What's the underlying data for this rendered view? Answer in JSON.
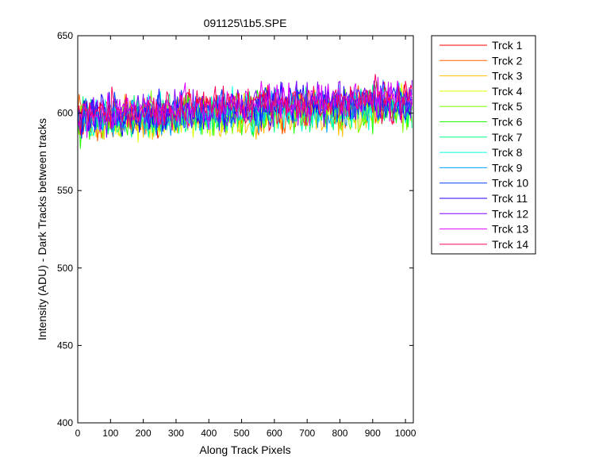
{
  "chart_data": {
    "type": "line",
    "title": "091125\\1b5.SPE",
    "xlabel": "Along Track Pixels",
    "ylabel": "Intensity (ADU) - Dark Tracks between tracks",
    "xlim": [
      0,
      1024
    ],
    "ylim": [
      400,
      650
    ],
    "xticks": [
      0,
      100,
      200,
      300,
      400,
      500,
      600,
      700,
      800,
      900,
      1000
    ],
    "yticks": [
      400,
      450,
      500,
      550,
      600,
      650
    ],
    "grid": false,
    "legend_position": "outside-right-top",
    "x_sampling": {
      "start": 0,
      "end": 1023,
      "step": 4
    },
    "noise_amplitude": 9,
    "series": [
      {
        "name": "Trck 1",
        "color": "#ff0000",
        "baseline": [
          [
            0,
            596
          ],
          [
            300,
            599
          ],
          [
            600,
            603
          ],
          [
            1023,
            607
          ]
        ]
      },
      {
        "name": "Trck 2",
        "color": "#ff6000",
        "baseline": [
          [
            0,
            595
          ],
          [
            300,
            598
          ],
          [
            600,
            601
          ],
          [
            1023,
            605
          ]
        ]
      },
      {
        "name": "Trck 3",
        "color": "#ffbf00",
        "baseline": [
          [
            0,
            594
          ],
          [
            300,
            597
          ],
          [
            600,
            600
          ],
          [
            1023,
            603
          ]
        ]
      },
      {
        "name": "Trck 4",
        "color": "#dfff00",
        "baseline": [
          [
            0,
            594
          ],
          [
            300,
            597
          ],
          [
            600,
            600
          ],
          [
            1023,
            603
          ]
        ]
      },
      {
        "name": "Trck 5",
        "color": "#80ff00",
        "baseline": [
          [
            0,
            595
          ],
          [
            300,
            598
          ],
          [
            600,
            601
          ],
          [
            1023,
            604
          ]
        ]
      },
      {
        "name": "Trck 6",
        "color": "#20ff00",
        "baseline": [
          [
            0,
            595
          ],
          [
            300,
            598
          ],
          [
            600,
            601
          ],
          [
            1023,
            604
          ]
        ]
      },
      {
        "name": "Trck 7",
        "color": "#00ff80",
        "baseline": [
          [
            0,
            596
          ],
          [
            300,
            599
          ],
          [
            600,
            602
          ],
          [
            1023,
            605
          ]
        ]
      },
      {
        "name": "Trck 8",
        "color": "#00ffdf",
        "baseline": [
          [
            0,
            596
          ],
          [
            300,
            599
          ],
          [
            600,
            602
          ],
          [
            1023,
            605
          ]
        ]
      },
      {
        "name": "Trck 9",
        "color": "#009fff",
        "baseline": [
          [
            0,
            597
          ],
          [
            300,
            600
          ],
          [
            600,
            603
          ],
          [
            1023,
            606
          ]
        ]
      },
      {
        "name": "Trck 10",
        "color": "#0040ff",
        "baseline": [
          [
            0,
            598
          ],
          [
            300,
            601
          ],
          [
            600,
            604
          ],
          [
            1023,
            607
          ]
        ]
      },
      {
        "name": "Trck 11",
        "color": "#2000ff",
        "baseline": [
          [
            0,
            598
          ],
          [
            300,
            602
          ],
          [
            600,
            605
          ],
          [
            1023,
            608
          ]
        ]
      },
      {
        "name": "Trck 12",
        "color": "#8000ff",
        "baseline": [
          [
            0,
            599
          ],
          [
            300,
            602
          ],
          [
            600,
            606
          ],
          [
            1023,
            610
          ]
        ]
      },
      {
        "name": "Trck 13",
        "color": "#df00ff",
        "baseline": [
          [
            0,
            600
          ],
          [
            300,
            603
          ],
          [
            600,
            606
          ],
          [
            1023,
            610
          ]
        ]
      },
      {
        "name": "Trck 14",
        "color": "#ff0060",
        "baseline": [
          [
            0,
            600
          ],
          [
            300,
            603
          ],
          [
            600,
            606
          ],
          [
            1023,
            609
          ]
        ]
      }
    ]
  }
}
